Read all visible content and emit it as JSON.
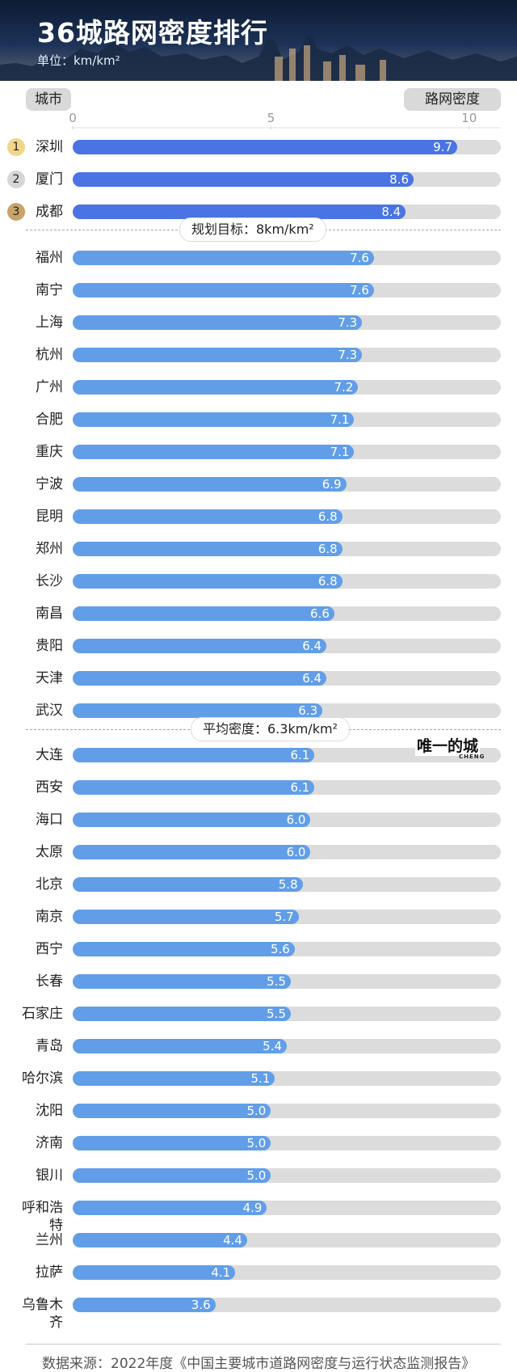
{
  "header": {
    "title": "36城路网密度排行",
    "unit": "单位：km/km²"
  },
  "columns": {
    "city": "城市",
    "density": "路网密度"
  },
  "colors": {
    "top_bar": "#4a73e3",
    "bar": "#629ee8",
    "track": "#dcdcdc",
    "rank1": "#f1d68a",
    "rank2": "#d6d6d6",
    "rank3": "#c9a36a"
  },
  "chart_data": {
    "type": "bar",
    "orientation": "horizontal",
    "xlim": [
      0,
      10.8
    ],
    "xticks": [
      "0",
      "5",
      "10"
    ],
    "categories": [
      "深圳",
      "厦门",
      "成都",
      "福州",
      "南宁",
      "上海",
      "杭州",
      "广州",
      "合肥",
      "重庆",
      "宁波",
      "昆明",
      "郑州",
      "长沙",
      "南昌",
      "贵阳",
      "天津",
      "武汉",
      "大连",
      "西安",
      "海口",
      "太原",
      "北京",
      "南京",
      "西宁",
      "长春",
      "石家庄",
      "青岛",
      "哈尔滨",
      "沈阳",
      "济南",
      "银川",
      "呼和浩特",
      "兰州",
      "拉萨",
      "乌鲁木齐"
    ],
    "values": [
      9.7,
      8.6,
      8.4,
      7.6,
      7.6,
      7.3,
      7.3,
      7.2,
      7.1,
      7.1,
      6.9,
      6.8,
      6.8,
      6.8,
      6.6,
      6.4,
      6.4,
      6.3,
      6.1,
      6.1,
      6.0,
      6.0,
      5.8,
      5.7,
      5.6,
      5.5,
      5.5,
      5.4,
      5.1,
      5.0,
      5.0,
      5.0,
      4.9,
      4.4,
      4.1,
      3.6
    ],
    "value_labels": [
      "9.7",
      "8.6",
      "8.4",
      "7.6",
      "7.6",
      "7.3",
      "7.3",
      "7.2",
      "7.1",
      "7.1",
      "6.9",
      "6.8",
      "6.8",
      "6.8",
      "6.6",
      "6.4",
      "6.4",
      "6.3",
      "6.1",
      "6.1",
      "6.0",
      "6.0",
      "5.8",
      "5.7",
      "5.6",
      "5.5",
      "5.5",
      "5.4",
      "5.1",
      "5.0",
      "5.0",
      "5.0",
      "4.9",
      "4.4",
      "4.1",
      "3.6"
    ],
    "ranks": [
      "1",
      "2",
      "3"
    ],
    "reference_lines": [
      {
        "value": 8,
        "label": "规划目标：8km/km²"
      },
      {
        "value": 6.3,
        "label": "平均密度：6.3km/km²"
      }
    ]
  },
  "brand": {
    "name": "唯一的城",
    "sub": "CHENG"
  },
  "source": "数据来源：2022年度《中国主要城市道路网密度与运行状态监测报告》"
}
